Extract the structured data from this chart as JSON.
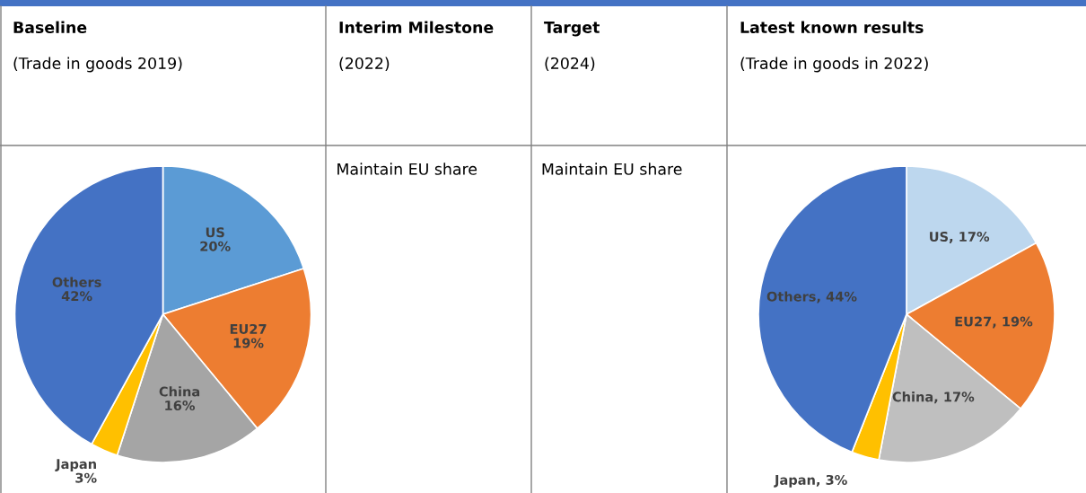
{
  "chart_data": [
    {
      "type": "pie",
      "title": "Baseline",
      "subtitle": "(Trade in goods 2019)",
      "categories": [
        "US",
        "EU27",
        "China",
        "Japan",
        "Others"
      ],
      "values": [
        20,
        19,
        16,
        3,
        42
      ],
      "colors": [
        "#5b9bd5",
        "#ed7d31",
        "#a5a5a5",
        "#ffc000",
        "#4472c4"
      ],
      "value_labels": [
        "20%",
        "19%",
        "16%",
        "3%",
        "42%"
      ]
    },
    {
      "type": "other",
      "title": "Interim Milestone",
      "subtitle": "(2022)",
      "annotations": [
        "Maintain EU share"
      ]
    },
    {
      "type": "other",
      "title": "Target",
      "subtitle": "(2024)",
      "annotations": [
        "Maintain EU share"
      ]
    },
    {
      "type": "pie",
      "title": "Latest known results",
      "subtitle": "(Trade in goods in 2022)",
      "categories": [
        "US",
        "EU27",
        "China",
        "Japan",
        "Others"
      ],
      "values": [
        17,
        19,
        17,
        3,
        44
      ],
      "colors": [
        "#bdd7ee",
        "#ed7d31",
        "#bfbfbf",
        "#ffc000",
        "#4472c4"
      ],
      "value_labels": [
        ", 17%",
        ", 19%",
        ", 17%",
        ", 3%",
        ", 44%"
      ]
    }
  ]
}
